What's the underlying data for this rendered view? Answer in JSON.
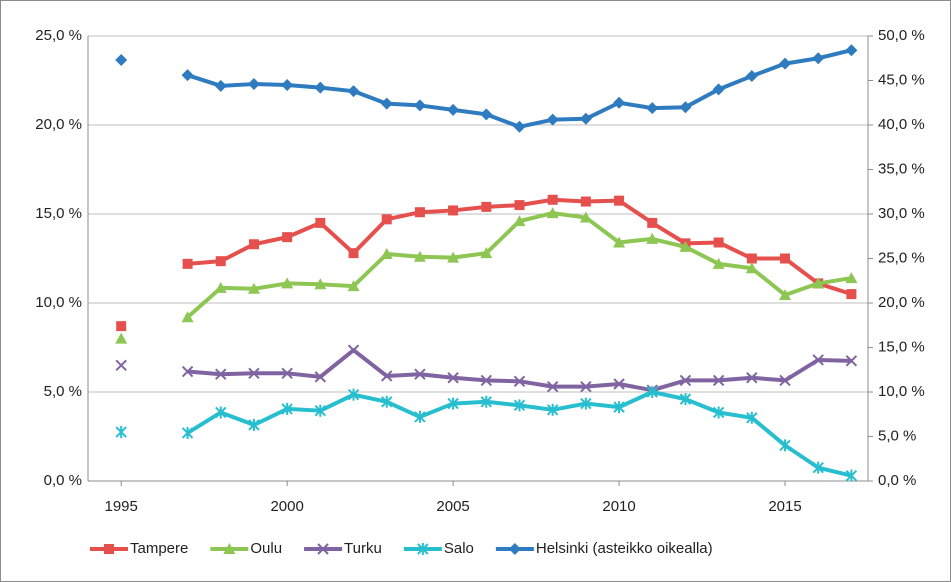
{
  "chart_data": {
    "type": "line",
    "x": [
      1995,
      1996,
      1997,
      1998,
      1999,
      2000,
      2001,
      2002,
      2003,
      2004,
      2005,
      2006,
      2007,
      2008,
      2009,
      2010,
      2011,
      2012,
      2013,
      2014,
      2015,
      2016,
      2017
    ],
    "xlim": [
      1994,
      2017.5
    ],
    "xticks": [
      1995,
      2000,
      2005,
      2010,
      2015
    ],
    "ylim": [
      0,
      25
    ],
    "yticks": [
      {
        "value": 0,
        "label": "0,0 %"
      },
      {
        "value": 5,
        "label": "5,0 %"
      },
      {
        "value": 10,
        "label": "10,0 %"
      },
      {
        "value": 15,
        "label": "15,0 %"
      },
      {
        "value": 20,
        "label": "20,0 %"
      },
      {
        "value": 25,
        "label": "25,0 %"
      }
    ],
    "y2lim": [
      0,
      50
    ],
    "y2ticks": [
      {
        "value": 0,
        "label": "0,0 %"
      },
      {
        "value": 5,
        "label": "5,0 %"
      },
      {
        "value": 10,
        "label": "10,0 %"
      },
      {
        "value": 15,
        "label": "15,0 %"
      },
      {
        "value": 20,
        "label": "20,0 %"
      },
      {
        "value": 25,
        "label": "25,0 %"
      },
      {
        "value": 30,
        "label": "30,0 %"
      },
      {
        "value": 35,
        "label": "35,0 %"
      },
      {
        "value": 40,
        "label": "40,0 %"
      },
      {
        "value": 45,
        "label": "45,0 %"
      },
      {
        "value": 50,
        "label": "50,0 %"
      }
    ],
    "grid": true,
    "legend": "bottom",
    "series": [
      {
        "name": "Tampere",
        "color": "#e5504d",
        "marker": "square",
        "values": [
          8.7,
          null,
          12.2,
          12.35,
          13.3,
          13.7,
          14.5,
          12.8,
          14.7,
          15.1,
          15.2,
          15.4,
          15.5,
          15.8,
          15.7,
          15.75,
          14.5,
          13.35,
          13.4,
          12.5,
          12.5,
          11.1,
          10.5
        ]
      },
      {
        "name": "Oulu",
        "color": "#8ec653",
        "marker": "triangle",
        "values": [
          8.0,
          null,
          9.2,
          10.85,
          10.8,
          11.1,
          11.05,
          10.95,
          12.75,
          12.6,
          12.55,
          12.8,
          14.6,
          15.05,
          14.8,
          13.4,
          13.6,
          13.15,
          12.2,
          11.95,
          10.45,
          11.1,
          11.4
        ]
      },
      {
        "name": "Turku",
        "color": "#8064a2",
        "marker": "cross",
        "values": [
          6.5,
          null,
          6.15,
          6.0,
          6.05,
          6.05,
          5.85,
          7.35,
          5.9,
          6.0,
          5.8,
          5.65,
          5.6,
          5.3,
          5.3,
          5.45,
          5.1,
          5.65,
          5.65,
          5.8,
          5.65,
          6.8,
          6.75
        ]
      },
      {
        "name": "Salo",
        "color": "#27bfd0",
        "marker": "star",
        "values": [
          2.75,
          null,
          2.7,
          3.85,
          3.15,
          4.05,
          3.95,
          4.85,
          4.45,
          3.6,
          4.35,
          4.45,
          4.25,
          4.0,
          4.35,
          4.15,
          5.0,
          4.6,
          3.85,
          3.55,
          2.0,
          0.75,
          0.3
        ]
      },
      {
        "name": "Helsinki (asteikko oikealla)",
        "color": "#2e7cbf",
        "marker": "diamond",
        "axis": "y2",
        "values": [
          47.3,
          null,
          45.6,
          44.4,
          44.6,
          44.5,
          44.2,
          43.8,
          42.4,
          42.2,
          41.7,
          41.2,
          39.8,
          40.6,
          40.7,
          42.5,
          41.9,
          42.0,
          44.0,
          45.5,
          46.9,
          47.5,
          48.4
        ]
      }
    ]
  }
}
